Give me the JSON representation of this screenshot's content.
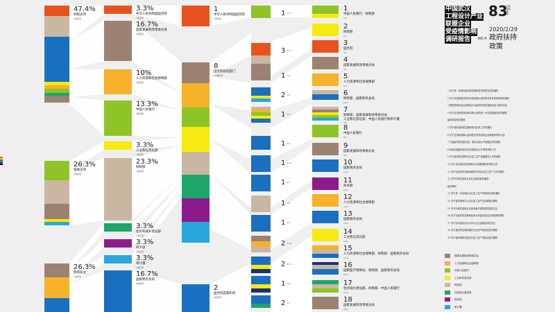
{
  "header": {
    "title_lines": [
      "中国武汉",
      "工程设计产业",
      "联盟企业",
      "受疫情影响",
      "调研报告"
    ],
    "big_number": "83",
    "small_side": [
      "天现",
      "家有",
      "收",
      "调"
    ],
    "date": "2020/2/29",
    "no_label": "NO.4",
    "section_title_1": "政府扶持",
    "section_title_2": "政策"
  },
  "colors": {
    "orange": "#e8521f",
    "taupe": "#c9b7a1",
    "brown": "#9b8272",
    "blue": "#1a6fc0",
    "yellow": "#f6ea10",
    "gold": "#f5b22a",
    "green": "#8ec428",
    "teal": "#1ea56a",
    "purple": "#8c1b8c",
    "cyan": "#29a6dc",
    "navy": "#1d2f7a"
  },
  "col1": [
    {
      "value": "47.4%",
      "name": "财税支持",
      "count": "9地区项"
    },
    {
      "value": "26.3%",
      "name": "金融支持",
      "count": "5地区项"
    },
    {
      "value": "26.3%",
      "name": "稳岗就业",
      "count": "5地区项"
    }
  ],
  "col2": [
    {
      "value": "3.3%",
      "name": "中华人民共和国国务院",
      "count": "1地区项"
    },
    {
      "value": "16.7%",
      "name": "国家发展和改革委员会",
      "count": "5地区项"
    },
    {
      "value": "10%",
      "name": "人力资源和社会保障部",
      "count": "3地区项"
    },
    {
      "value": "13.3%",
      "name": "中国人民银行",
      "count": "4地区项"
    },
    {
      "value": "3.3%",
      "name": "工业和信息化部",
      "count": "1地区项"
    },
    {
      "value": "23.3%",
      "name": "财政部",
      "count": "7地区项"
    },
    {
      "value": "3.3%",
      "name": "住房和城乡建设部",
      "count": "1地区项"
    },
    {
      "value": "3.3%",
      "name": "商务部",
      "count": "1地区项"
    },
    {
      "value": "3.3%",
      "name": "审计署",
      "count": "1地区项"
    },
    {
      "value": "16.7%",
      "name": "国家税务总局",
      "count": "5地区项"
    }
  ],
  "col3": [
    {
      "num": "1",
      "name": "中华人民共和国国务院",
      "count": "1地区项"
    },
    {
      "num": "8",
      "name": "国务院组成部门",
      "count": "14地区项"
    },
    {
      "num": "2",
      "name": "国务院直属机构",
      "count": "6地区项"
    }
  ],
  "col4_labels": [
    {
      "num": "1",
      "frac": "1/21"
    },
    {
      "num": "3",
      "frac": "2/21"
    },
    {
      "num": "1",
      "frac": "1/9"
    },
    {
      "num": "2",
      "frac": "1/9"
    },
    {
      "num": "1",
      "frac": "2/9"
    },
    {
      "num": "1",
      "frac": "2/3"
    },
    {
      "num": "1",
      "frac": "2/10"
    },
    {
      "num": "1",
      "frac": "2/3"
    },
    {
      "num": "1",
      "frac": "2/5"
    },
    {
      "num": "1",
      "frac": "2/5"
    },
    {
      "num": "2",
      "frac": "2/10"
    },
    {
      "num": "2",
      "frac": "2/11"
    },
    {
      "num": "1",
      "frac": "2/6"
    },
    {
      "num": "2",
      "frac": "2/7"
    }
  ],
  "col5": [
    {
      "num": "1",
      "name": "中国人民银行、财政部",
      "count": "1/9"
    },
    {
      "num": "2",
      "name": "财政部",
      "count": "2/7"
    },
    {
      "num": "3",
      "name": "国务院",
      "count": "3/1"
    },
    {
      "num": "4",
      "name": "国家发展和改革委员会",
      "count": "4/5"
    },
    {
      "num": "5",
      "name": "人力资源和社会保障部",
      "count": "5/3"
    },
    {
      "num": "6",
      "name": "财政部、国家税务总局",
      "count": "6/12"
    },
    {
      "num": "7",
      "name": "财政部、国家发展和改革委员会、",
      "name2": "工业和信息化部、中国人民银行和审计署",
      "count": "7/5"
    },
    {
      "num": "8",
      "name": "中国人民银行",
      "count": "8/1"
    },
    {
      "num": "9",
      "name": "国家发展和改革委员会",
      "count": "9/5"
    },
    {
      "num": "10",
      "name": "国家税务总局",
      "count": "10/2"
    },
    {
      "num": "11",
      "name": "商务部",
      "count": "11/1"
    },
    {
      "num": "12",
      "name": "人力资源和社会保障部",
      "count": "12/3"
    },
    {
      "num": "13",
      "name": "国家税务总局",
      "count": "13/5"
    },
    {
      "num": "14",
      "name": "工业和信息化部",
      "count": "14/1"
    },
    {
      "num": "15",
      "name": "人力资源和社会保障部、财政部、国家税务总局",
      "count": "15/2"
    },
    {
      "num": "16",
      "name": "国家医疗保障局、财政部、国家税务总局",
      "count": "16/3"
    },
    {
      "num": "17",
      "name": "住房城乡建设部、财政部、中国人民银行",
      "count": "17/2"
    },
    {
      "num": "18",
      "name": "国家发展和改革委员会",
      "count": "18/2"
    }
  ],
  "policies": [
    "1 关于进一步做好疫情防控期间信贷政策支持的通知",
    "2 关于支持新型冠状病毒感染肺炎疫情防控有关税收政策的通知",
    "3 国务院常务会议部署加大对疫情防控的金融支持力度的决定",
    "4 关于应对新型冠状病毒肺炎疫情进一步加强金融支持的通知",
    "   疫情防控相关措施",
    "5 关于做好疫情防控期间劳动关系工作的通知",
    "6 关于支持新冠肺炎疫情防控有关税收征收管理事项的公告",
    "7 打赢疫情防控阻击战，落实全面从严金融支持的通知",
    "8 延续实施疫情防控重点保障企业专项再贷款工作",
    "9 关于疫情防控期间企业复工复产金融服务工作的通知",
    "10 关于支持疫情防控期间企业纳税缴费事项的公告",
    "11 关于在疫情防控期间做好外贸企业复工复产工作的通知",
    "12 关于阶段性减免企业社会保险费的通知",
    "   疫情期间",
    "13 关于进一步加强对企业复工复产的税费支持的通知",
    "14 关于疫情期间中小企业复工复产支持措施的通知",
    "15 关于阶段性减免企业基本医疗保险费的指导意见",
    "16 关于在疫情防控期间住房公积金阶段性支持政策的通知",
    "17 关于应对疫情加大对中小企业金融支持的意见",
    "18 关于疫情防控期间做好企业用气用电支持的通知",
    "19 关于疫情期间加强企业复工复产减免优惠的通知"
  ],
  "legend": [
    {
      "label": "国家发展和改革委员会",
      "color": "#9b8272"
    },
    {
      "label": "人力资源和社会保障部",
      "color": "#f5b22a"
    },
    {
      "label": "中国人民银行",
      "color": "#8ec428"
    },
    {
      "label": "工业和信息化部",
      "color": "#f6ea10"
    },
    {
      "label": "财政部",
      "color": "#c9b7a1"
    },
    {
      "label": "住房城乡建设部",
      "color": "#1ea56a"
    },
    {
      "label": "商务部",
      "color": "#8c1b8c"
    },
    {
      "label": "审计署",
      "color": "#29a6dc"
    }
  ]
}
